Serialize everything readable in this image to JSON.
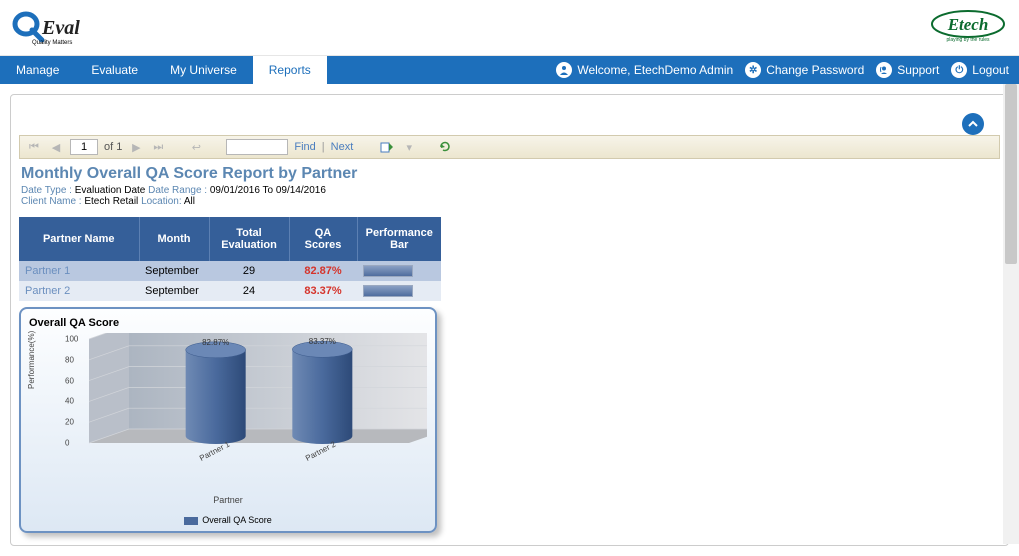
{
  "brand": {
    "left_primary": "QEval",
    "left_tag": "Quality Matters",
    "right": "Etech",
    "right_tag": "playing by the rules"
  },
  "nav": {
    "items": [
      {
        "label": "Manage",
        "active": false
      },
      {
        "label": "Evaluate",
        "active": false
      },
      {
        "label": "My Universe",
        "active": false
      },
      {
        "label": "Reports",
        "active": true
      }
    ],
    "welcome_prefix": "Welcome,",
    "welcome_user": "EtechDemo Admin",
    "change_password": "Change Password",
    "support": "Support",
    "logout": "Logout"
  },
  "report_toolbar": {
    "page_current": "1",
    "page_of_label": "of",
    "page_total": "1",
    "find_label": "Find",
    "next_label": "Next"
  },
  "report": {
    "title": "Monthly Overall QA Score Report by Partner",
    "meta": {
      "date_type_label": "Date Type :",
      "date_type_value": "Evaluation Date",
      "date_range_label": "Date Range :",
      "date_range_value": "09/01/2016  To  09/14/2016",
      "client_label": "Client Name :",
      "client_value": "Etech Retail",
      "location_label": "Location:",
      "location_value": "All"
    },
    "columns": [
      "Partner Name",
      "Month",
      "Total Evaluation",
      "QA Scores",
      "Performance Bar"
    ],
    "rows": [
      {
        "partner": "Partner 1",
        "month": "September",
        "total": "29",
        "score": "82.87%",
        "bar_pct": 83
      },
      {
        "partner": "Partner 2",
        "month": "September",
        "total": "24",
        "score": "83.37%",
        "bar_pct": 83
      }
    ]
  },
  "chart": {
    "title": "Overall QA Score",
    "type": "3d-cylinder-bar",
    "y_label": "Performance(%)",
    "x_label": "Partner",
    "y_ticks": [
      0,
      20,
      40,
      60,
      80,
      100
    ],
    "ylim": [
      0,
      100
    ],
    "series_label": "Overall QA Score",
    "series_color": "#4a6a9d",
    "categories": [
      "Partner 1",
      "Partner 2"
    ],
    "values": [
      82.87,
      83.37
    ],
    "value_labels": [
      "82.87%",
      "83.37%"
    ],
    "background_gradient_left": "#acb5c1",
    "background_gradient_right": "#e8e8ea",
    "floor_color": "#b7b9bd",
    "border_color": "#6d92c2"
  }
}
